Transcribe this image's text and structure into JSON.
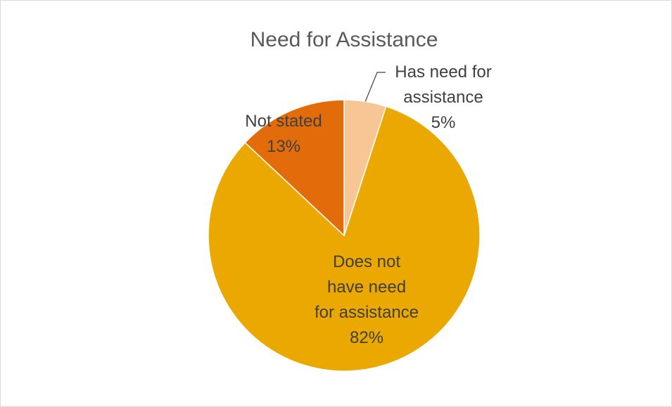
{
  "chart_data": {
    "type": "pie",
    "title": "Need for Assistance",
    "start_angle_deg": 0,
    "direction": "clockwise",
    "slices": [
      {
        "name": "Has need for assistance",
        "value": 5,
        "label_lines": [
          "Has need for",
          "assistance",
          "5%"
        ],
        "color": "#F8C594"
      },
      {
        "name": "Does not have need for assistance",
        "value": 82,
        "label_lines": [
          "Does not",
          "have need",
          "for assistance",
          "82%"
        ],
        "color": "#EAA800"
      },
      {
        "name": "Not stated",
        "value": 13,
        "label_lines": [
          "Not stated",
          "13%"
        ],
        "color": "#E36C0A"
      }
    ]
  }
}
